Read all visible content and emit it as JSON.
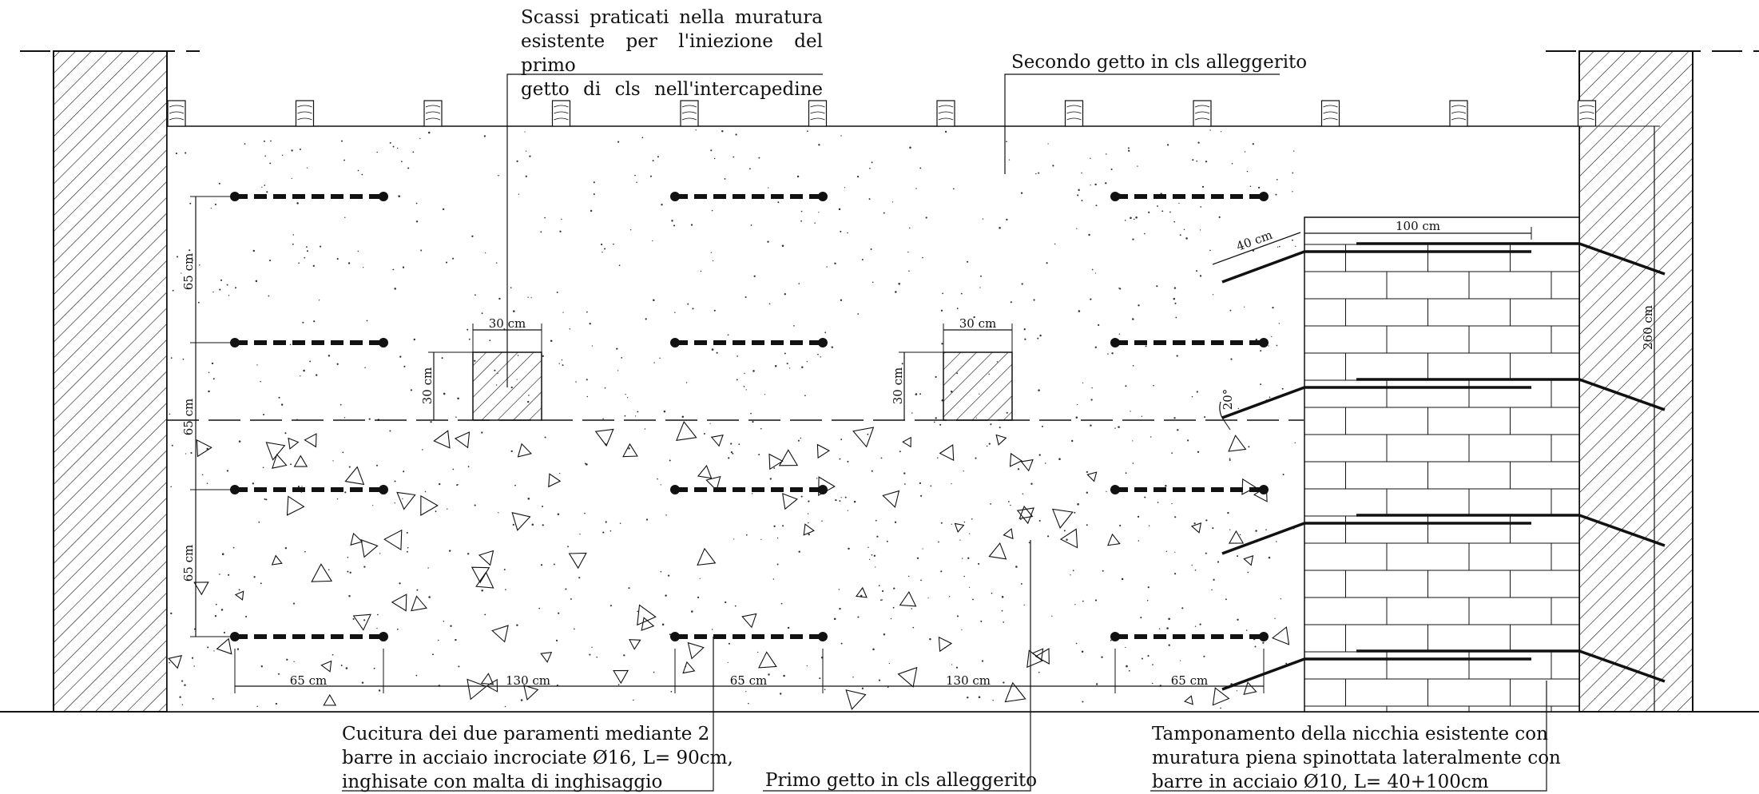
{
  "annotations": {
    "scassi": [
      "Scassi praticati nella muratura",
      "esistente per l'iniezione del primo",
      "getto di cls nell'intercapedine"
    ],
    "secondo_getto": "Secondo getto in cls alleggerito",
    "primo_getto": "Primo getto in cls alleggerito",
    "cucitura": [
      "Cucitura dei due paramenti mediante 2",
      "barre in acciaio incrociate Ø16, L= 90cm,",
      "inghisate con malta di inghisaggio"
    ],
    "tamponamento": [
      "Tamponamento della nicchia esistente con",
      "muratura piena spinottata lateralmente con",
      "barre in acciaio Ø10, L= 40+100cm"
    ]
  },
  "dimensions": {
    "spacing_65": "65 cm",
    "spacing_130": "130 cm",
    "block_30": "30 cm",
    "anchor_40": "40 cm",
    "anchor_100": "100 cm",
    "height_260": "260 cm",
    "angle_20": "20°"
  },
  "colors": {
    "line": "#111111",
    "background": "#ffffff"
  }
}
